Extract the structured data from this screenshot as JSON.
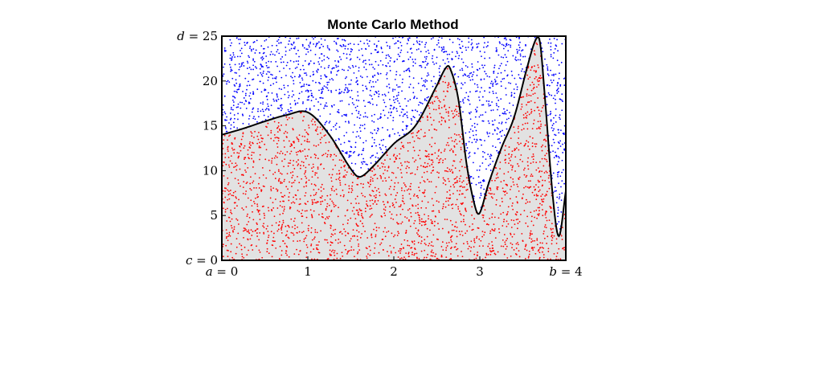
{
  "chart_data": {
    "type": "scatter",
    "title": "Monte Carlo Method",
    "xlim": [
      0,
      4
    ],
    "ylim": [
      0,
      25
    ],
    "x_ticks": [
      {
        "value": 0,
        "var": "a",
        "label": "a = 0"
      },
      {
        "value": 1,
        "var": "",
        "label": "1"
      },
      {
        "value": 2,
        "var": "",
        "label": "2"
      },
      {
        "value": 3,
        "var": "",
        "label": "3"
      },
      {
        "value": 4,
        "var": "b",
        "label": "b = 4"
      }
    ],
    "y_ticks": [
      {
        "value": 0,
        "var": "c",
        "label": "c = 0"
      },
      {
        "value": 5,
        "var": "",
        "label": "5"
      },
      {
        "value": 10,
        "var": "",
        "label": "10"
      },
      {
        "value": 15,
        "var": "",
        "label": "15"
      },
      {
        "value": 20,
        "var": "",
        "label": "20"
      },
      {
        "value": 25,
        "var": "d",
        "label": "d = 25"
      }
    ],
    "curve": {
      "x": [
        0,
        0.25,
        0.5,
        0.75,
        1.0,
        1.25,
        1.5,
        1.6,
        1.75,
        2.0,
        2.25,
        2.5,
        2.6,
        2.65,
        2.75,
        2.85,
        2.95,
        3.0,
        3.1,
        3.25,
        3.4,
        3.55,
        3.65,
        3.7,
        3.75,
        3.85,
        3.92,
        4.0
      ],
      "y": [
        14.0,
        14.7,
        15.5,
        16.2,
        16.5,
        14.0,
        10.2,
        9.3,
        10.4,
        13.0,
        15.0,
        19.5,
        21.4,
        21.5,
        18.0,
        10.5,
        5.8,
        5.3,
        8.5,
        12.5,
        16.0,
        21.5,
        24.6,
        24.3,
        19.0,
        7.0,
        2.7,
        7.7
      ],
      "color": "#000000"
    },
    "fill_color": "#e2e2e2",
    "series": [
      {
        "name": "",
        "color": "#ff0000",
        "position": "below curve",
        "approx_count": 2500
      },
      {
        "name": "",
        "color": "#0000ff",
        "position": "above curve",
        "approx_count": 1500
      }
    ],
    "grid": false,
    "legend": "none"
  }
}
